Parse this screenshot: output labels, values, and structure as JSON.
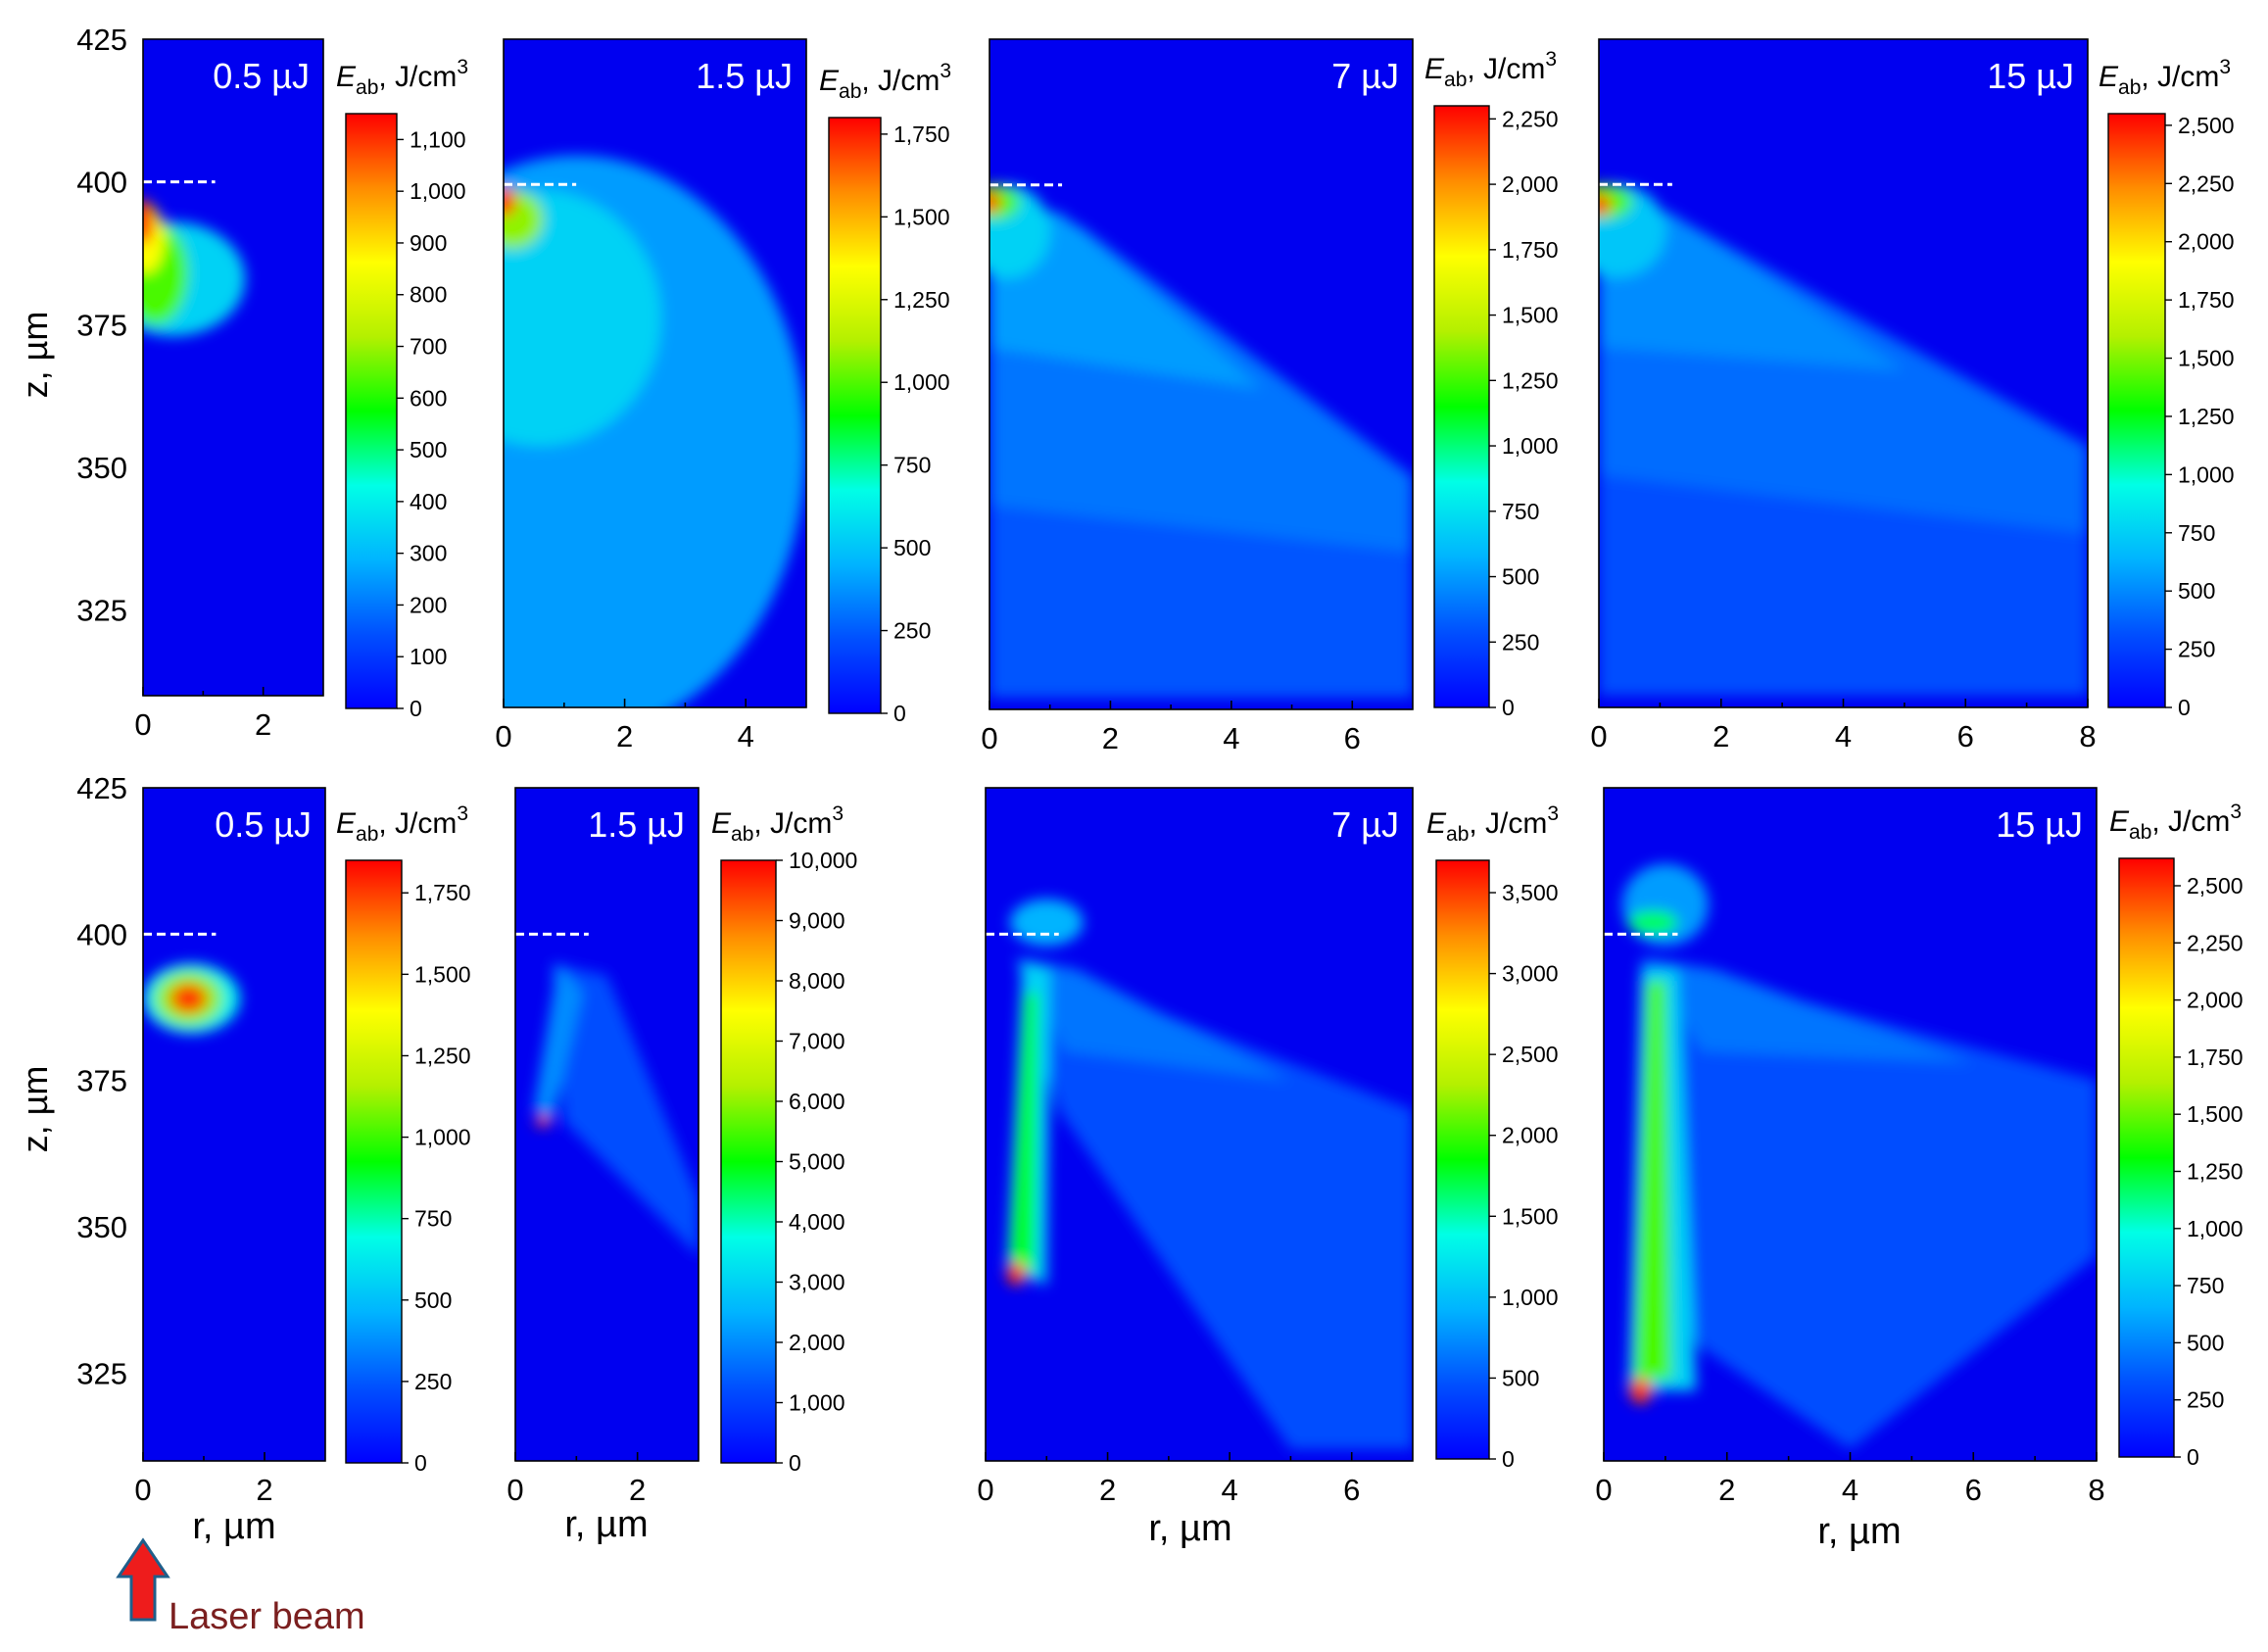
{
  "figure": {
    "ylabel": "z, µm",
    "xlabel": "r, µm",
    "annotation": "Laser beam",
    "colorbar_label_main": "E",
    "colorbar_label_sub": "ab",
    "colorbar_label_unit": ", J/cm",
    "colorbar_label_sup": "3",
    "colors": {
      "frame": "#000000",
      "background": "#0000f0",
      "marker_line": "#ffffff",
      "arrow_fill": "#ee1c1c",
      "arrow_stroke": "#1f5f8b",
      "annotation_text": "#7b1f1f"
    },
    "colormap": [
      "#0000ff",
      "#0050ff",
      "#00b4ff",
      "#00ffe6",
      "#00ff00",
      "#b4f000",
      "#ffff00",
      "#ff8c00",
      "#ff0000"
    ]
  },
  "chart_data": [
    {
      "type": "heatmap",
      "row": "top",
      "energy_label": "0.5 µJ",
      "xlim": [
        0,
        3
      ],
      "ylim": [
        310,
        425
      ],
      "xticks": [
        0,
        2
      ],
      "yticks": [
        325,
        350,
        375,
        400,
        425
      ],
      "surface_z": 400,
      "surface_marker_r": [
        0,
        1.2
      ],
      "colorbar": {
        "max": 1150,
        "ticks": [
          0,
          100,
          200,
          300,
          400,
          500,
          600,
          700,
          800,
          900,
          1000,
          1100
        ]
      },
      "features": [
        {
          "shape": "ellipse",
          "r": 0.5,
          "z": 383,
          "rr": 1.2,
          "rz": 10,
          "level": 0.3
        },
        {
          "shape": "ellipse",
          "r": 0.2,
          "z": 384,
          "rr": 0.55,
          "rz": 9,
          "level": 0.55
        },
        {
          "shape": "ellipse",
          "r": 0.05,
          "z": 390,
          "rr": 0.3,
          "rz": 6,
          "level": 0.75
        },
        {
          "shape": "ellipse",
          "r": 0.0,
          "z": 393,
          "rr": 0.18,
          "rz": 4,
          "level": 0.95
        }
      ]
    },
    {
      "type": "heatmap",
      "row": "top",
      "energy_label": "1.5 µJ",
      "xlim": [
        0,
        5
      ],
      "ylim": [
        310,
        425
      ],
      "xticks": [
        0,
        2,
        4
      ],
      "yticks": [
        325,
        350,
        375,
        400,
        425
      ],
      "surface_z": 400,
      "surface_marker_r": [
        0,
        1.2
      ],
      "colorbar": {
        "max": 1800,
        "ticks": [
          0,
          250,
          500,
          750,
          1000,
          1250,
          1500,
          1750
        ]
      },
      "features": [
        {
          "shape": "ellipse",
          "r": 1.2,
          "z": 355,
          "rr": 3.8,
          "rz": 50,
          "level": 0.22
        },
        {
          "shape": "ellipse",
          "r": 0.6,
          "z": 377,
          "rr": 2.0,
          "rz": 22,
          "level": 0.3
        },
        {
          "shape": "ellipse",
          "r": 0.15,
          "z": 394,
          "rr": 0.5,
          "rz": 5,
          "level": 0.6
        },
        {
          "shape": "ellipse",
          "r": 0.0,
          "z": 397,
          "rr": 0.2,
          "rz": 2.5,
          "level": 0.95
        }
      ]
    },
    {
      "type": "heatmap",
      "row": "top",
      "energy_label": "7 µJ",
      "xlim": [
        0,
        7
      ],
      "ylim": [
        310,
        425
      ],
      "xticks": [
        0,
        2,
        4,
        6
      ],
      "yticks": [
        325,
        350,
        375,
        400,
        425
      ],
      "surface_z": 400,
      "surface_marker_r": [
        0,
        1.2
      ],
      "colorbar": {
        "max": 2300,
        "ticks": [
          0,
          250,
          500,
          750,
          1000,
          1250,
          1500,
          1750,
          2000,
          2250
        ]
      },
      "features": [
        {
          "shape": "poly",
          "points": [
            [
              0,
              398
            ],
            [
              7,
              340
            ],
            [
              7,
              312
            ],
            [
              0,
              312
            ]
          ],
          "level": 0.13
        },
        {
          "shape": "poly",
          "points": [
            [
              0,
              398
            ],
            [
              1.5,
              393
            ],
            [
              7,
              350
            ],
            [
              7,
              337
            ],
            [
              0,
              345
            ]
          ],
          "level": 0.17
        },
        {
          "shape": "poly",
          "points": [
            [
              0,
              398
            ],
            [
              1.2,
              395
            ],
            [
              4.5,
              365
            ],
            [
              0,
              372
            ]
          ],
          "level": 0.22
        },
        {
          "shape": "ellipse",
          "r": 0.3,
          "z": 392,
          "rr": 0.7,
          "rz": 8,
          "level": 0.3
        },
        {
          "shape": "ellipse",
          "r": 0.1,
          "z": 397,
          "rr": 0.4,
          "rz": 3,
          "level": 0.55
        },
        {
          "shape": "ellipse",
          "r": 0.0,
          "z": 397,
          "rr": 0.18,
          "rz": 1.8,
          "level": 0.95
        }
      ]
    },
    {
      "type": "heatmap",
      "row": "top",
      "energy_label": "15 µJ",
      "xlim": [
        0,
        8
      ],
      "ylim": [
        310,
        425
      ],
      "xticks": [
        0,
        2,
        4,
        6,
        8
      ],
      "yticks": [
        325,
        350,
        375,
        400,
        425
      ],
      "surface_z": 400,
      "surface_marker_r": [
        0,
        1.2
      ],
      "colorbar": {
        "max": 2550,
        "ticks": [
          0,
          250,
          500,
          750,
          1000,
          1250,
          1500,
          1750,
          2000,
          2250,
          2500
        ]
      },
      "features": [
        {
          "shape": "poly",
          "points": [
            [
              0,
              398
            ],
            [
              8,
              345
            ],
            [
              8,
              312
            ],
            [
              0,
              312
            ]
          ],
          "level": 0.12
        },
        {
          "shape": "poly",
          "points": [
            [
              0,
              398
            ],
            [
              1.5,
              393
            ],
            [
              8,
              355
            ],
            [
              8,
              340
            ],
            [
              0,
              350
            ]
          ],
          "level": 0.16
        },
        {
          "shape": "poly",
          "points": [
            [
              0,
              398
            ],
            [
              1.2,
              395
            ],
            [
              5,
              368
            ],
            [
              0,
              372
            ]
          ],
          "level": 0.2
        },
        {
          "shape": "ellipse",
          "r": 0.3,
          "z": 392,
          "rr": 0.8,
          "rz": 8,
          "level": 0.28
        },
        {
          "shape": "ellipse",
          "r": 0.1,
          "z": 397,
          "rr": 0.45,
          "rz": 3,
          "level": 0.55
        },
        {
          "shape": "ellipse",
          "r": 0.0,
          "z": 396.5,
          "rr": 0.2,
          "rz": 1.8,
          "level": 0.95
        }
      ]
    },
    {
      "type": "heatmap",
      "row": "bottom",
      "energy_label": "0.5 µJ",
      "xlim": [
        0,
        3
      ],
      "ylim": [
        310,
        425
      ],
      "xticks": [
        0,
        2
      ],
      "yticks": [
        325,
        350,
        375,
        400,
        425
      ],
      "surface_z": 400,
      "surface_marker_r": [
        0,
        1.2
      ],
      "colorbar": {
        "max": 1850,
        "ticks": [
          0,
          250,
          500,
          750,
          1000,
          1250,
          1500,
          1750
        ]
      },
      "features": [
        {
          "shape": "ellipse",
          "r": 0.8,
          "z": 389,
          "rr": 0.8,
          "rz": 6,
          "level": 0.35
        },
        {
          "shape": "ellipse",
          "r": 0.75,
          "z": 389,
          "rr": 0.55,
          "rz": 4.5,
          "level": 0.6
        },
        {
          "shape": "ellipse",
          "r": 0.75,
          "z": 389,
          "rr": 0.3,
          "rz": 2.5,
          "level": 0.95
        }
      ]
    },
    {
      "type": "heatmap",
      "row": "bottom",
      "energy_label": "1.5 µJ",
      "xlim": [
        0,
        3
      ],
      "ylim": [
        310,
        425
      ],
      "xticks": [
        0,
        2
      ],
      "yticks": [
        325,
        350,
        375,
        400,
        425
      ],
      "surface_z": 400,
      "surface_marker_r": [
        0,
        1.2
      ],
      "colorbar": {
        "max": 10000,
        "ticks": [
          0,
          1000,
          2000,
          3000,
          4000,
          5000,
          6000,
          7000,
          8000,
          9000,
          10000
        ]
      },
      "features": [
        {
          "shape": "poly",
          "points": [
            [
              0.6,
              395
            ],
            [
              1.5,
              393
            ],
            [
              3,
              355
            ],
            [
              3,
              345
            ],
            [
              0.8,
              368
            ]
          ],
          "level": 0.12
        },
        {
          "shape": "poly",
          "points": [
            [
              0.3,
              370
            ],
            [
              0.7,
              395
            ],
            [
              1.1,
              390
            ],
            [
              0.6,
              368
            ]
          ],
          "level": 0.2
        },
        {
          "shape": "ellipse",
          "r": 0.45,
          "z": 368,
          "rr": 0.12,
          "rz": 0.9,
          "level": 0.95
        }
      ]
    },
    {
      "type": "heatmap",
      "row": "bottom",
      "energy_label": "7 µJ",
      "xlim": [
        0,
        7
      ],
      "ylim": [
        310,
        425
      ],
      "xticks": [
        0,
        2,
        4,
        6
      ],
      "yticks": [
        325,
        350,
        375,
        400,
        425
      ],
      "surface_z": 400,
      "surface_marker_r": [
        0,
        1.2
      ],
      "colorbar": {
        "max": 3700,
        "ticks": [
          0,
          500,
          1000,
          1500,
          2000,
          2500,
          3000,
          3500
        ]
      },
      "features": [
        {
          "shape": "poly",
          "points": [
            [
              0.5,
              396
            ],
            [
              7,
              370
            ],
            [
              7,
              312
            ],
            [
              5,
              312
            ],
            [
              1.2,
              370
            ]
          ],
          "level": 0.12
        },
        {
          "shape": "poly",
          "points": [
            [
              0.5,
              396
            ],
            [
              1.5,
              394
            ],
            [
              5,
              375
            ],
            [
              1.3,
              380
            ]
          ],
          "level": 0.17
        },
        {
          "shape": "ellipse",
          "r": 1.0,
          "z": 402,
          "rr": 0.6,
          "rz": 4,
          "level": 0.25
        },
        {
          "shape": "poly",
          "points": [
            [
              0.35,
              343
            ],
            [
              0.6,
              395
            ],
            [
              1.05,
              394
            ],
            [
              1.0,
              340
            ]
          ],
          "level": 0.3
        },
        {
          "shape": "poly",
          "points": [
            [
              0.4,
              345
            ],
            [
              0.65,
              390
            ],
            [
              0.85,
              390
            ],
            [
              0.8,
              342
            ]
          ],
          "level": 0.5
        },
        {
          "shape": "ellipse",
          "r": 0.5,
          "z": 342,
          "rr": 0.15,
          "rz": 2,
          "level": 0.95
        }
      ]
    },
    {
      "type": "heatmap",
      "row": "bottom",
      "energy_label": "15 µJ",
      "xlim": [
        0,
        8
      ],
      "ylim": [
        310,
        425
      ],
      "xticks": [
        0,
        2,
        4,
        6,
        8
      ],
      "yticks": [
        325,
        350,
        375,
        400,
        425
      ],
      "surface_z": 400,
      "surface_marker_r": [
        0,
        1.2
      ],
      "colorbar": {
        "max": 2620,
        "ticks": [
          0,
          250,
          500,
          750,
          1000,
          1250,
          1500,
          1750,
          2000,
          2250,
          2500
        ]
      },
      "features": [
        {
          "shape": "poly",
          "points": [
            [
              0.6,
              396
            ],
            [
              8,
              375
            ],
            [
              8,
              345
            ],
            [
              4,
              312
            ],
            [
              1.5,
              330
            ]
          ],
          "level": 0.12
        },
        {
          "shape": "poly",
          "points": [
            [
              0.6,
              396
            ],
            [
              1.8,
              394
            ],
            [
              6,
              378
            ],
            [
              1.6,
              380
            ]
          ],
          "level": 0.17
        },
        {
          "shape": "ellipse",
          "r": 1.0,
          "z": 405,
          "rr": 0.7,
          "rz": 7,
          "level": 0.22
        },
        {
          "shape": "ellipse",
          "r": 0.8,
          "z": 402,
          "rr": 0.4,
          "rz": 2,
          "level": 0.45
        },
        {
          "shape": "poly",
          "points": [
            [
              0.4,
              322
            ],
            [
              0.6,
              394
            ],
            [
              1.2,
              394
            ],
            [
              1.5,
              322
            ]
          ],
          "level": 0.3
        },
        {
          "shape": "poly",
          "points": [
            [
              0.5,
              324
            ],
            [
              0.7,
              392
            ],
            [
              1.0,
              392
            ],
            [
              1.1,
              324
            ]
          ],
          "level": 0.55
        },
        {
          "shape": "ellipse",
          "r": 0.6,
          "z": 322,
          "rr": 0.18,
          "rz": 2.2,
          "level": 0.95
        }
      ]
    }
  ]
}
